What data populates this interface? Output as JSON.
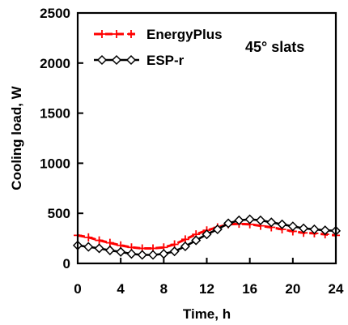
{
  "chart_data": {
    "type": "line",
    "title": "",
    "xlabel": "Time, h",
    "ylabel": "Cooling load, W",
    "xlim": [
      0,
      24
    ],
    "ylim": [
      0,
      2500
    ],
    "xticks": [
      0,
      4,
      8,
      12,
      16,
      20,
      24
    ],
    "yticks": [
      0,
      500,
      1000,
      1500,
      2000,
      2500
    ],
    "grid": false,
    "legend_position": "top-left",
    "annotation": "45° slats",
    "series": [
      {
        "name": "EnergyPlus",
        "color": "#ff0000",
        "line_style": "dashed",
        "marker": "plus",
        "x": [
          0,
          1,
          2,
          3,
          4,
          5,
          6,
          7,
          8,
          9,
          10,
          11,
          12,
          13,
          14,
          15,
          16,
          17,
          18,
          19,
          20,
          21,
          22,
          23,
          24
        ],
        "y": [
          280,
          260,
          230,
          205,
          180,
          160,
          150,
          150,
          160,
          190,
          240,
          290,
          330,
          360,
          390,
          395,
          390,
          375,
          360,
          340,
          320,
          305,
          300,
          290,
          280
        ]
      },
      {
        "name": "ESP-r",
        "color": "#000000",
        "line_style": "solid",
        "marker": "diamond",
        "x": [
          0,
          1,
          2,
          3,
          4,
          5,
          6,
          7,
          8,
          9,
          10,
          11,
          12,
          13,
          14,
          15,
          16,
          17,
          18,
          19,
          20,
          21,
          22,
          23,
          24
        ],
        "y": [
          180,
          165,
          150,
          130,
          115,
          95,
          85,
          85,
          95,
          120,
          170,
          230,
          290,
          340,
          400,
          430,
          440,
          430,
          410,
          390,
          370,
          350,
          340,
          330,
          325
        ]
      }
    ]
  }
}
